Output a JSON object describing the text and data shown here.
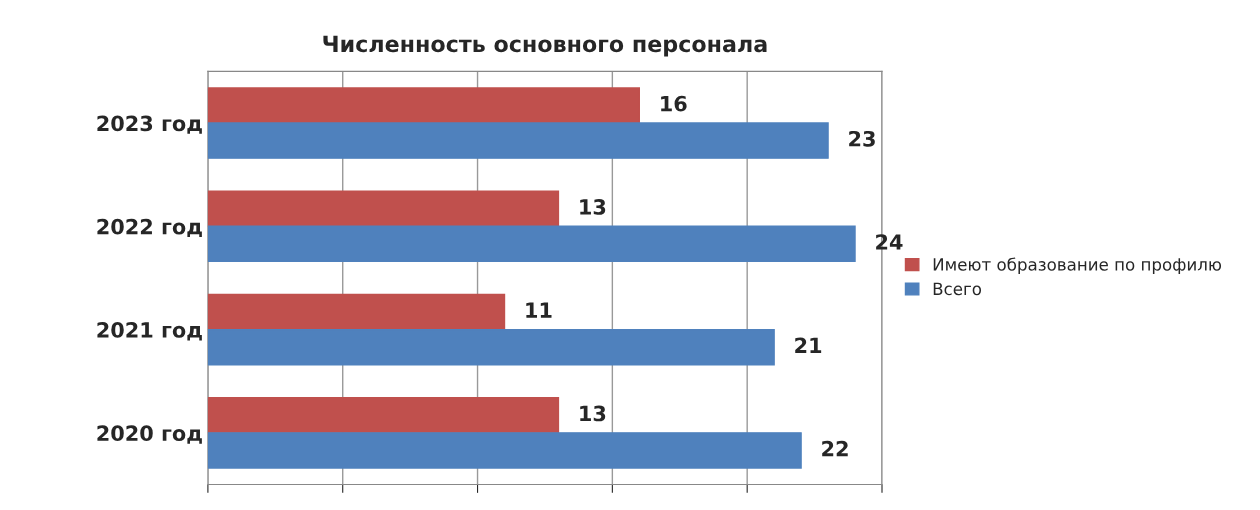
{
  "chart_data": {
    "type": "bar",
    "orientation": "horizontal",
    "title": "Численность основного персонала",
    "categories": [
      "2023 год",
      "2022 год",
      "2021 год",
      "2020 год"
    ],
    "series": [
      {
        "name": "Имеют образование по профилю",
        "color": "#c0504d",
        "values": [
          16,
          13,
          11,
          13
        ]
      },
      {
        "name": "Всего",
        "color": "#4f81bd",
        "values": [
          23,
          24,
          21,
          22
        ]
      }
    ],
    "xlim": [
      0,
      25
    ],
    "xticks": [
      {
        "value": 0,
        "label": null
      },
      {
        "value": 5,
        "label": null
      },
      {
        "value": 10,
        "label": null
      },
      {
        "value": 15,
        "label": null
      },
      {
        "value": 20,
        "label": null
      },
      {
        "value": 25,
        "label": null
      }
    ],
    "grid": "x",
    "legend": "right",
    "data_labels": true
  }
}
